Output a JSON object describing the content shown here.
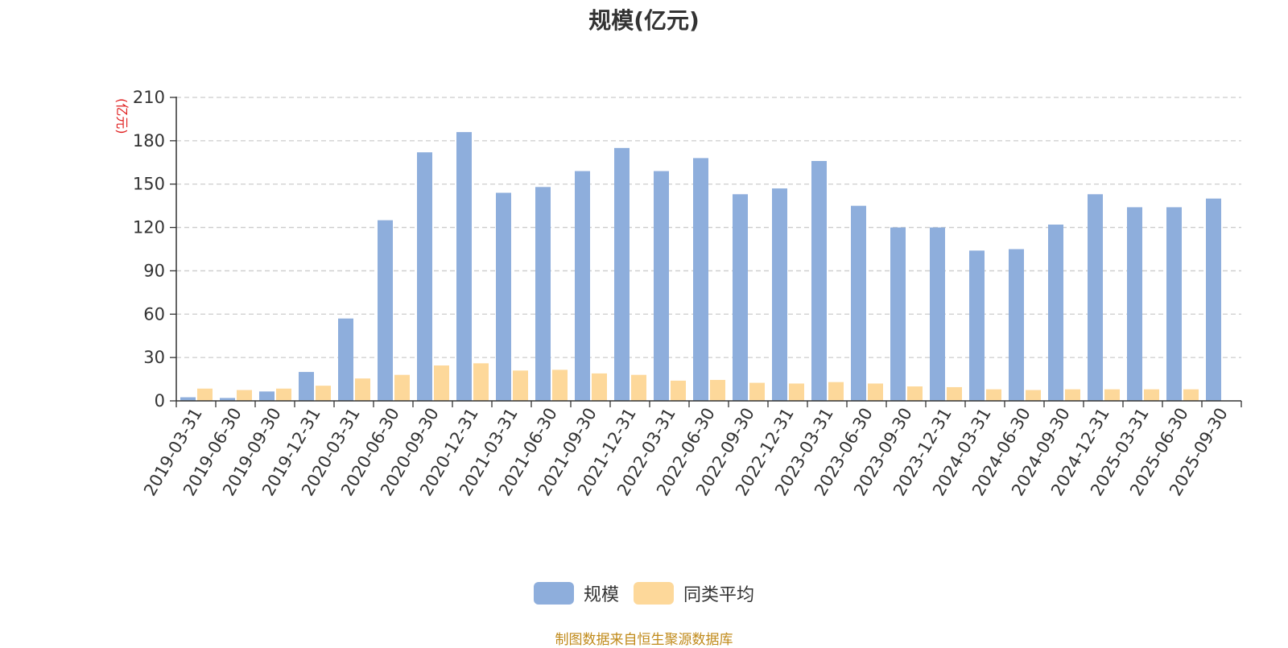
{
  "colors": {
    "series_1": "#8eaedc",
    "series_2": "#fdd89a",
    "unit": "#e02020",
    "source": "#c08a1a"
  },
  "legend": {
    "items": [
      "规模",
      "同类平均"
    ]
  },
  "source_text": "制图数据来自恒生聚源数据库",
  "chart_data": {
    "type": "bar",
    "title": "规模(亿元)",
    "ylabel": "(亿元)",
    "ylim": [
      0,
      210
    ],
    "yticks": [
      0,
      30,
      60,
      90,
      120,
      150,
      180,
      210
    ],
    "grid": true,
    "legend_position": "bottom-center",
    "categories": [
      "2019-03-31",
      "2019-06-30",
      "2019-09-30",
      "2019-12-31",
      "2020-03-31",
      "2020-06-30",
      "2020-09-30",
      "2020-12-31",
      "2021-03-31",
      "2021-06-30",
      "2021-09-30",
      "2021-12-31",
      "2022-03-31",
      "2022-06-30",
      "2022-09-30",
      "2022-12-31",
      "2023-03-31",
      "2023-06-30",
      "2023-09-30",
      "2023-12-31",
      "2024-03-31",
      "2024-06-30",
      "2024-09-30",
      "2024-12-31",
      "2025-03-31",
      "2025-06-30",
      "2025-09-30"
    ],
    "series": [
      {
        "name": "规模",
        "values": [
          2.5,
          2,
          6.5,
          20,
          57,
          125,
          172,
          186,
          144,
          148,
          159,
          175,
          159,
          168,
          143,
          147,
          166,
          135,
          120,
          120,
          104,
          105,
          122,
          143,
          134,
          134,
          140
        ]
      },
      {
        "name": "同类平均",
        "values": [
          8.5,
          7.5,
          8.5,
          10.5,
          15.5,
          18,
          24.5,
          26,
          21,
          21.5,
          19,
          18,
          14,
          14.5,
          12.5,
          12,
          13,
          12,
          10,
          9.5,
          8,
          7.5,
          8,
          8,
          8,
          8,
          null
        ]
      }
    ]
  }
}
